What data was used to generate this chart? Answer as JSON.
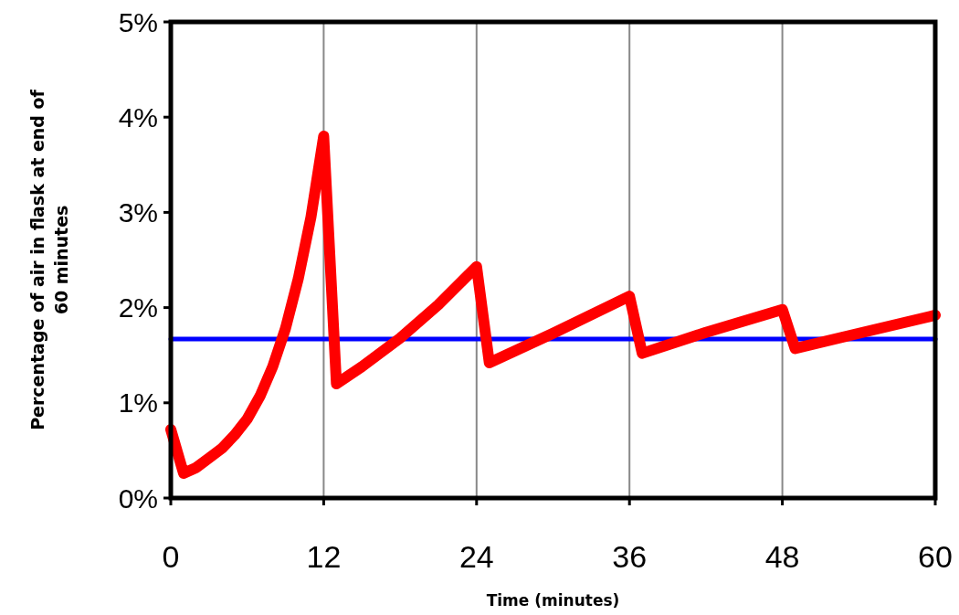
{
  "chart_data": {
    "type": "line",
    "xlabel": "Time (minutes)",
    "ylabel": "Percentage of air in flask at end of 60 minutes",
    "xlim": [
      0,
      60
    ],
    "xticks": [
      0,
      12,
      24,
      36,
      48,
      60
    ],
    "ylim": [
      0,
      5
    ],
    "yticks": [
      {
        "value": 0,
        "label": "0%"
      },
      {
        "value": 1,
        "label": "1%"
      },
      {
        "value": 2,
        "label": "2%"
      },
      {
        "value": 3,
        "label": "3%"
      },
      {
        "value": 4,
        "label": "4%"
      },
      {
        "value": 5,
        "label": "5%"
      }
    ],
    "grid": "x",
    "series": [
      {
        "color": "#0000ff",
        "x": [
          0,
          60
        ],
        "values": [
          1.67,
          1.67
        ]
      },
      {
        "color": "#ff0000",
        "x": [
          0,
          1,
          2,
          3,
          4,
          5,
          6,
          7,
          8,
          9,
          10,
          11,
          12,
          13,
          15,
          18,
          21,
          24,
          25,
          30,
          36,
          37,
          42,
          48,
          49,
          54,
          60
        ],
        "values": [
          0.72,
          0.26,
          0.32,
          0.42,
          0.52,
          0.66,
          0.83,
          1.07,
          1.38,
          1.78,
          2.3,
          2.95,
          3.8,
          1.2,
          1.38,
          1.68,
          2.03,
          2.43,
          1.42,
          1.73,
          2.12,
          1.52,
          1.74,
          1.98,
          1.57,
          1.73,
          1.92
        ]
      }
    ]
  }
}
